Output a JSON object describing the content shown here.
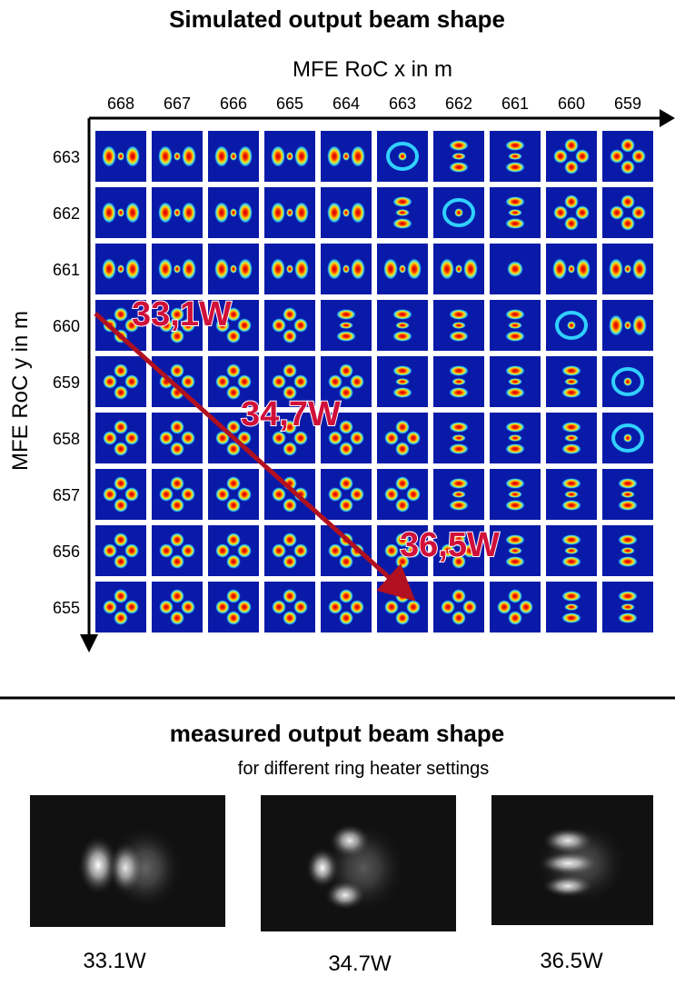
{
  "top": {
    "title": "Simulated output beam shape",
    "x_axis_label": "MFE RoC x in m",
    "y_axis_label": "MFE RoC y in m",
    "x_ticks": [
      668,
      667,
      666,
      665,
      664,
      663,
      662,
      661,
      660,
      659
    ],
    "y_ticks": [
      663,
      662,
      661,
      660,
      659,
      658,
      657,
      656,
      655
    ],
    "annotations": [
      "33,1W",
      "34,7W",
      "36,5W"
    ]
  },
  "bottom": {
    "title": "measured output beam shape",
    "subtitle": "for different ring heater settings",
    "captions": [
      "33.1W",
      "34.7W",
      "36.5W"
    ]
  }
}
